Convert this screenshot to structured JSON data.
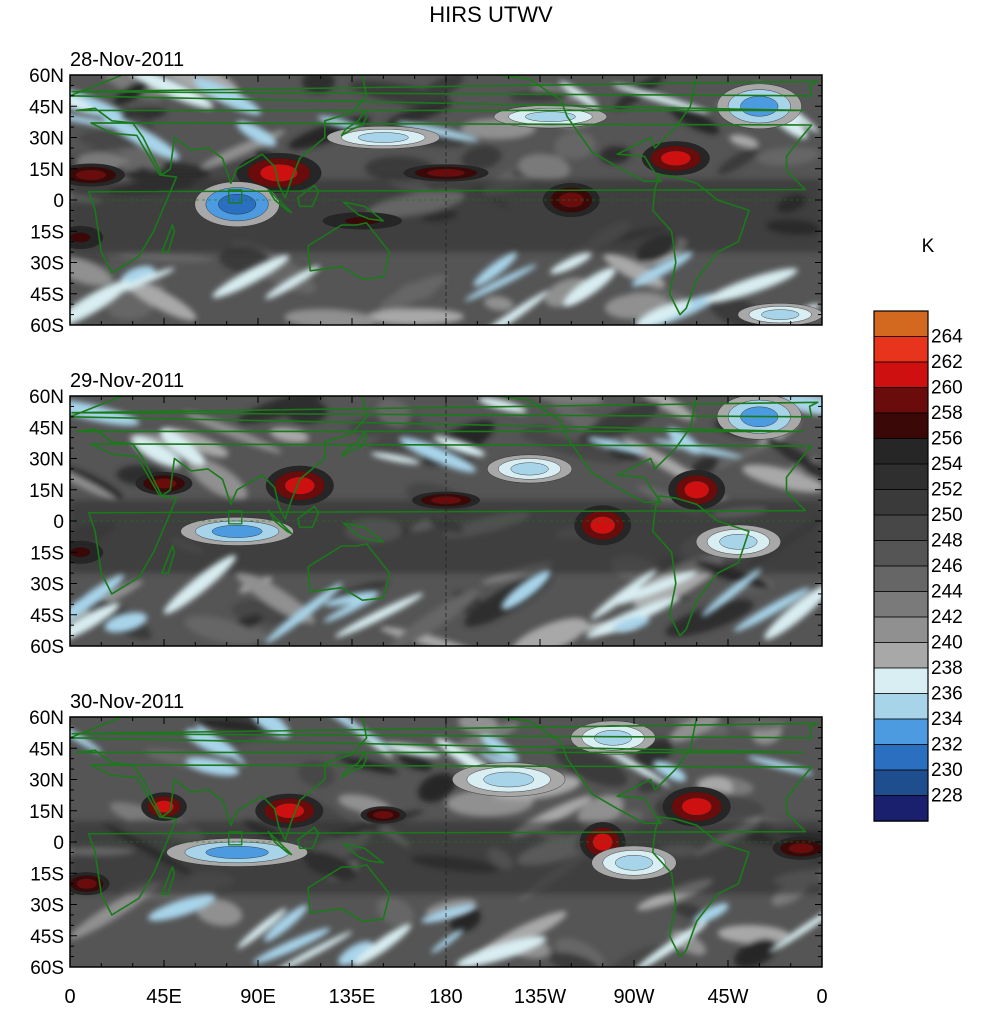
{
  "title": "HIRS UTWV",
  "units_label": "K",
  "map_data": {
    "type": "heatmap",
    "projection": "cylindrical-equidistant",
    "lat_ticks": [
      "60N",
      "45N",
      "30N",
      "15N",
      "0",
      "15S",
      "30S",
      "45S",
      "60S"
    ],
    "lon_ticks": [
      "0",
      "45E",
      "90E",
      "135E",
      "180",
      "135W",
      "90W",
      "45W",
      "0"
    ],
    "lat_range": [
      -60,
      60
    ],
    "lon_range": [
      0,
      360
    ],
    "panels": [
      {
        "date": "28-Nov-2011",
        "features": [
          {
            "kind": "warm",
            "lon": 100,
            "lat": 13,
            "rx": 15,
            "ry": 7,
            "level": 261
          },
          {
            "kind": "warm",
            "lon": 240,
            "lat": 0,
            "rx": 10,
            "ry": 6,
            "level": 259
          },
          {
            "kind": "warm",
            "lon": 290,
            "lat": 20,
            "rx": 12,
            "ry": 6,
            "level": 260
          },
          {
            "kind": "warm",
            "lon": 10,
            "lat": 12,
            "rx": 12,
            "ry": 4,
            "level": 258
          },
          {
            "kind": "warm",
            "lon": 180,
            "lat": 13,
            "rx": 15,
            "ry": 3,
            "level": 258
          },
          {
            "kind": "warm",
            "lon": 140,
            "lat": -10,
            "rx": 14,
            "ry": 3,
            "level": 257
          },
          {
            "kind": "warm",
            "lon": 5,
            "lat": -18,
            "rx": 8,
            "ry": 4,
            "level": 257
          },
          {
            "kind": "cold",
            "lon": 80,
            "lat": -2,
            "rx": 15,
            "ry": 8,
            "level": 231
          },
          {
            "kind": "cold",
            "lon": 150,
            "lat": 30,
            "rx": 20,
            "ry": 4,
            "level": 234
          },
          {
            "kind": "cold",
            "lon": 230,
            "lat": 40,
            "rx": 20,
            "ry": 4,
            "level": 235
          },
          {
            "kind": "cold",
            "lon": 330,
            "lat": 45,
            "rx": 15,
            "ry": 8,
            "level": 233
          },
          {
            "kind": "cold",
            "lon": 340,
            "lat": -55,
            "rx": 15,
            "ry": 4,
            "level": 235
          }
        ]
      },
      {
        "date": "29-Nov-2011",
        "features": [
          {
            "kind": "warm",
            "lon": 110,
            "lat": 17,
            "rx": 12,
            "ry": 7,
            "level": 261
          },
          {
            "kind": "warm",
            "lon": 255,
            "lat": -2,
            "rx": 10,
            "ry": 7,
            "level": 260
          },
          {
            "kind": "warm",
            "lon": 300,
            "lat": 15,
            "rx": 10,
            "ry": 7,
            "level": 260
          },
          {
            "kind": "warm",
            "lon": 45,
            "lat": 18,
            "rx": 10,
            "ry": 4,
            "level": 258
          },
          {
            "kind": "warm",
            "lon": 180,
            "lat": 10,
            "rx": 12,
            "ry": 3,
            "level": 258
          },
          {
            "kind": "warm",
            "lon": 5,
            "lat": -15,
            "rx": 8,
            "ry": 4,
            "level": 257
          },
          {
            "kind": "cold",
            "lon": 80,
            "lat": -5,
            "rx": 20,
            "ry": 5,
            "level": 232
          },
          {
            "kind": "cold",
            "lon": 220,
            "lat": 25,
            "rx": 15,
            "ry": 5,
            "level": 234
          },
          {
            "kind": "cold",
            "lon": 320,
            "lat": -10,
            "rx": 15,
            "ry": 6,
            "level": 235
          },
          {
            "kind": "cold",
            "lon": 330,
            "lat": 50,
            "rx": 15,
            "ry": 8,
            "level": 233
          }
        ]
      },
      {
        "date": "30-Nov-2011",
        "features": [
          {
            "kind": "warm",
            "lon": 105,
            "lat": 15,
            "rx": 12,
            "ry": 6,
            "level": 261
          },
          {
            "kind": "warm",
            "lon": 45,
            "lat": 17,
            "rx": 8,
            "ry": 5,
            "level": 260
          },
          {
            "kind": "warm",
            "lon": 255,
            "lat": 0,
            "rx": 8,
            "ry": 7,
            "level": 260
          },
          {
            "kind": "warm",
            "lon": 300,
            "lat": 17,
            "rx": 12,
            "ry": 7,
            "level": 260
          },
          {
            "kind": "warm",
            "lon": 350,
            "lat": -3,
            "rx": 10,
            "ry": 4,
            "level": 258
          },
          {
            "kind": "warm",
            "lon": 8,
            "lat": -20,
            "rx": 8,
            "ry": 4,
            "level": 258
          },
          {
            "kind": "warm",
            "lon": 150,
            "lat": 13,
            "rx": 8,
            "ry": 3,
            "level": 258
          },
          {
            "kind": "cold",
            "lon": 80,
            "lat": -5,
            "rx": 25,
            "ry": 5,
            "level": 232
          },
          {
            "kind": "cold",
            "lon": 210,
            "lat": 30,
            "rx": 20,
            "ry": 6,
            "level": 234
          },
          {
            "kind": "cold",
            "lon": 270,
            "lat": -10,
            "rx": 15,
            "ry": 6,
            "level": 234
          },
          {
            "kind": "cold",
            "lon": 260,
            "lat": 50,
            "rx": 15,
            "ry": 6,
            "level": 234
          }
        ]
      }
    ]
  },
  "colorbar": {
    "levels": [
      "228",
      "230",
      "232",
      "234",
      "236",
      "238",
      "240",
      "242",
      "244",
      "246",
      "248",
      "250",
      "252",
      "254",
      "256",
      "258",
      "260",
      "262",
      "264"
    ],
    "colors": [
      "#1a1f6e",
      "#1f4e8e",
      "#2a6fc0",
      "#4c9be0",
      "#a8d4ea",
      "#d9eef2",
      "#a8a8a8",
      "#909090",
      "#7a7a7a",
      "#666666",
      "#555555",
      "#474747",
      "#3a3a3a",
      "#2f2f2f",
      "#262626",
      "#3b0808",
      "#6a0c0c",
      "#cf1010",
      "#e8341c",
      "#d2691e"
    ]
  },
  "coast_color": "#1a7a1a"
}
